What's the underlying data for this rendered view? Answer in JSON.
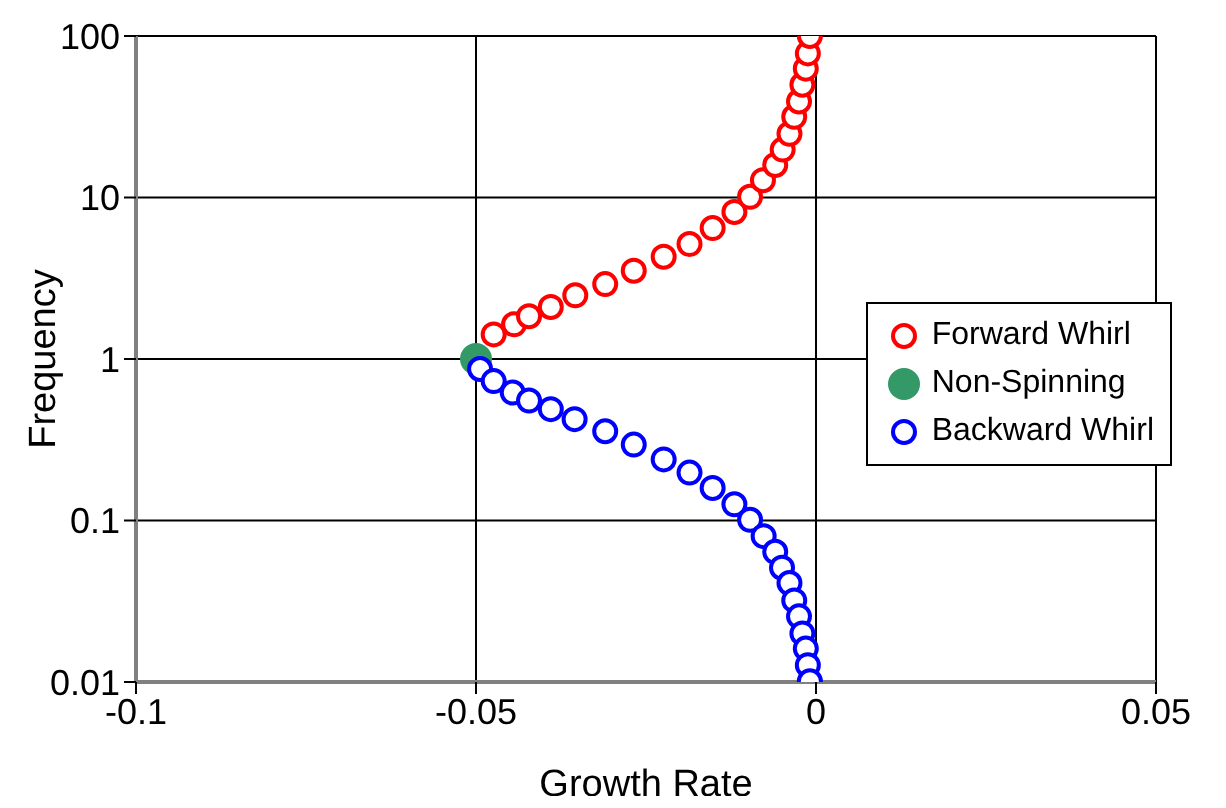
{
  "chart_data": {
    "type": "scatter",
    "xlabel": "Growth Rate",
    "ylabel": "Frequency",
    "xlim": [
      -0.1,
      0.05
    ],
    "xticks": [
      -0.1,
      -0.05,
      0,
      0.05
    ],
    "ylim": [
      0.01,
      100
    ],
    "yticks": [
      0.01,
      0.1,
      1,
      10,
      100
    ],
    "log": "y",
    "grid": true,
    "legend": "right",
    "marker": "circle",
    "series": [
      {
        "name": "Forward Whirl",
        "color": "#ff0000",
        "x": [
          -0.0474,
          -0.0444,
          -0.0422,
          -0.039,
          -0.0354,
          -0.031,
          -0.0268,
          -0.0224,
          -0.0186,
          -0.0152,
          -0.012,
          -0.0097,
          -0.0078,
          -0.006,
          -0.0049,
          -0.0039,
          -0.0032,
          -0.0025,
          -0.002,
          -0.0015,
          -0.0012,
          -0.0009
        ],
        "values": [
          1.42,
          1.64,
          1.84,
          2.1,
          2.48,
          2.91,
          3.52,
          4.3,
          5.15,
          6.47,
          8.14,
          10.1,
          12.8,
          15.9,
          19.8,
          24.8,
          31.6,
          39.3,
          49.9,
          62.8,
          78,
          100
        ]
      },
      {
        "name": "Non-Spinning",
        "color": "#339966",
        "x": [
          -0.05
        ],
        "values": [
          1
        ]
      },
      {
        "name": "Backward Whirl",
        "color": "#0000ff",
        "x": [
          -0.0494,
          -0.0474,
          -0.0446,
          -0.0422,
          -0.039,
          -0.0355,
          -0.031,
          -0.0268,
          -0.0224,
          -0.0186,
          -0.0152,
          -0.012,
          -0.0097,
          -0.0077,
          -0.006,
          -0.005,
          -0.0039,
          -0.0032,
          -0.0025,
          -0.002,
          -0.0015,
          -0.0012,
          -0.0009
        ],
        "values": [
          0.867,
          0.73,
          0.62,
          0.553,
          0.489,
          0.424,
          0.357,
          0.295,
          0.239,
          0.198,
          0.159,
          0.126,
          0.101,
          0.08,
          0.064,
          0.051,
          0.041,
          0.032,
          0.0255,
          0.02,
          0.0161,
          0.0127,
          0.0101
        ]
      }
    ]
  }
}
